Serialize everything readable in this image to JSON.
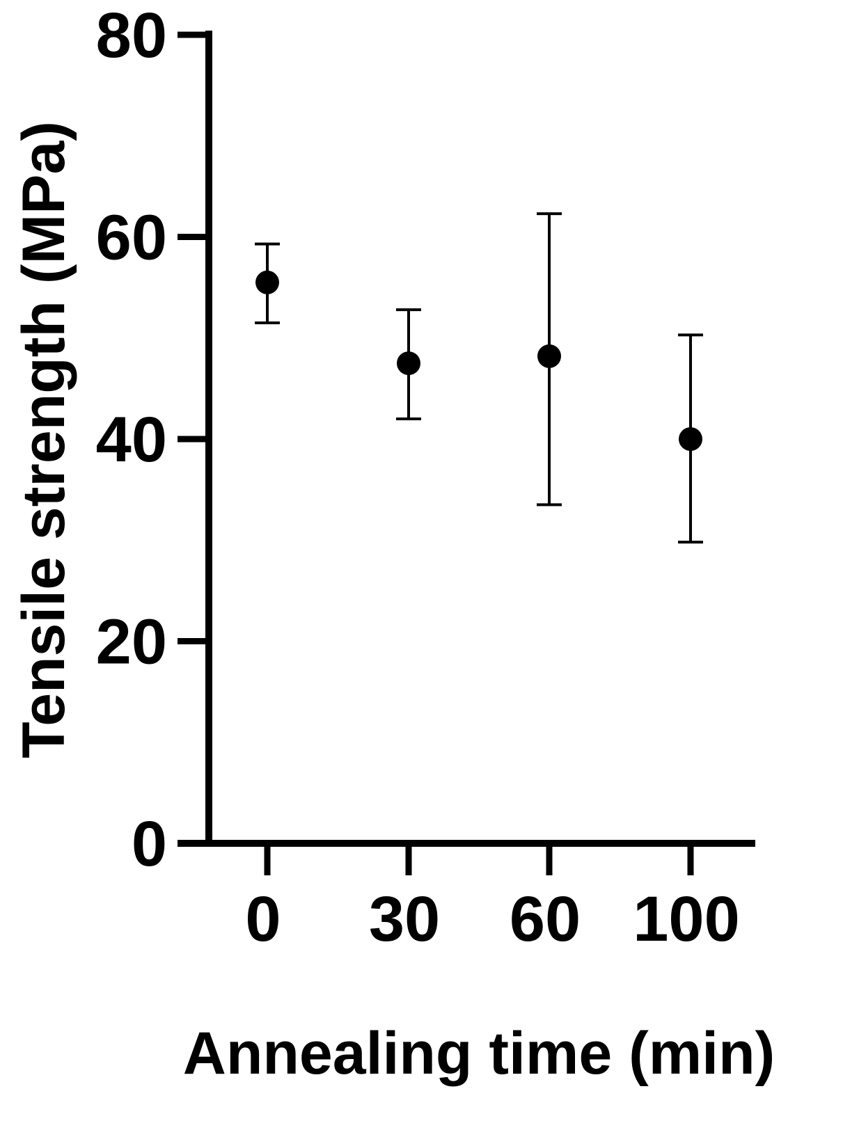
{
  "chart_data": {
    "type": "scatter",
    "title": "",
    "xlabel": "Annealing time (min)",
    "ylabel": "Tensile strength (MPa)",
    "categories": [
      "0",
      "30",
      "60",
      "100"
    ],
    "values": [
      55.5,
      47.5,
      48.2,
      40.0
    ],
    "error_lower": [
      51.5,
      42.0,
      33.5,
      29.8
    ],
    "error_upper": [
      59.3,
      52.8,
      62.3,
      50.3
    ],
    "ylim": [
      0,
      80
    ],
    "yticks": [
      "0",
      "20",
      "40",
      "60",
      "80"
    ],
    "grid": false,
    "legend": "none",
    "color": "#000000"
  }
}
